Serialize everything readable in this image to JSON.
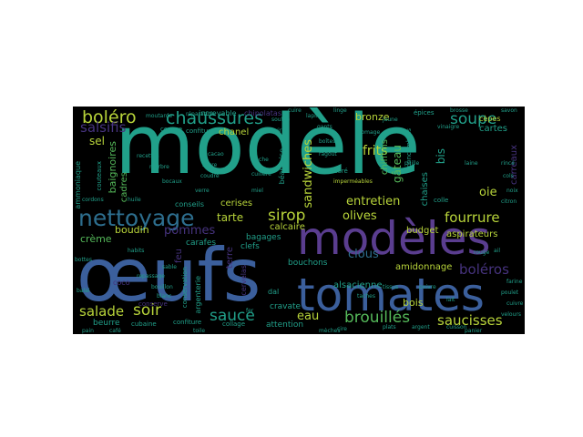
{
  "palette": {
    "teal": "#21a08a",
    "blue": "#3b5f9c",
    "purple": "#5a3d8f",
    "green": "#55b95a",
    "yellow": "#b8d43a",
    "darkblue": "#2d6e8e",
    "indigo": "#46337e",
    "background": "#000000"
  },
  "words": {
    "modele": "modèle",
    "oeufs": "œufs",
    "tomates": "tomates",
    "modeles": "modèles",
    "nettoyage": "nettoyage",
    "chaussures": "chaussures",
    "bolero": "boléro",
    "soupe": "soupe",
    "salsifis": "salsifis",
    "sirop": "sirop",
    "sauce": "sauce",
    "salade": "salade",
    "soir": "soir",
    "brouilles": "brouillés",
    "saucisses": "saucisses",
    "fourrure": "fourrure",
    "boleros": "boléros",
    "olives": "olives",
    "entretien": "entretien",
    "clous": "clous",
    "frits": "frits",
    "sandwiches": "sandwiches",
    "tarte": "tarte",
    "pommes": "pommes",
    "creme": "crème",
    "boudin": "boudin",
    "sel": "sel",
    "baignoires": "baignoires",
    "cadres": "cadres",
    "oie": "oie",
    "bis": "bis",
    "gateau": "gâteau",
    "chiffons": "chiffons",
    "bronze": "bronze",
    "eau": "eau",
    "bois": "bois",
    "budget": "budget",
    "amidonnage": "amidonnage",
    "alsacienne": "alsacienne",
    "chaises": "chaises",
    "aspirateurs": "aspirateurs",
    "cartes": "cartes",
    "chanel": "chanel",
    "beurre": "beurre",
    "cerises": "cerises",
    "calcaire": "calcaire",
    "bagages": "bagages",
    "carafes": "carafes",
    "clefs": "clefs",
    "bouchons": "bouchons",
    "feu": "feu",
    "terre": "terre",
    "attention": "attention",
    "cravate": "cravate",
    "dal": "dal",
    "carreaux": "carreaux",
    "conserve": "conserve",
    "argenterie": "argenterie",
    "conservation": "conservation",
    "coco": "coco",
    "cubaine": "cubaine",
    "confitures": "confitures",
    "chipolatas": "chipolatas",
    "increvable": "increvable",
    "couleurs": "couleurs",
    "collage": "collage",
    "conseils": "conseils",
    "ammoniaque": "ammoniaque",
    "cepes": "cèpes",
    "courge": "courge",
    "concombres": "concombres",
    "dore": "doré",
    "colle": "colle",
    "buvard": "buvard",
    "bearnaise": "béarnaise",
    "confiture": "confiture",
    "cervelas": "cervelas",
    "couteaux": "couteaux",
    "epices": "épices",
    "lapin": "lapin",
    "gants": "gants",
    "cuir": "cuir",
    "tache": "tache",
    "souffle": "soufflé",
    "vinaigre": "vinaigre",
    "jaune": "jaune",
    "noix": "noix",
    "citron": "citron",
    "imperméables": "imperméables",
    "farine": "farine",
    "poulet": "poulet",
    "cuivre": "cuivre",
    "velours": "velours",
    "cuisson": "cuisson",
    "argent": "argent",
    "plats": "plats",
    "cire": "cire",
    "reparation": "réparation",
    "moutarde": "moutarde",
    "recettes": "recettes",
    "marbre": "marbre",
    "bocaux": "bocaux",
    "cacao": "cacao",
    "sucre": "sucre",
    "coudre": "coudre",
    "verre": "verre",
    "miel": "miel",
    "cuillere": "cuillère",
    "boites": "boîtes",
    "ragout": "ragoût",
    "fromage": "fromage",
    "paille": "paille",
    "laine": "laine",
    "rince": "rincé",
    "cols": "cols",
    "ail": "ail",
    "rouge": "rouge",
    "lait": "lait",
    "poivre": "poivre",
    "tissus": "tissus",
    "habits": "habits",
    "repassage": "repassage",
    "bouillon": "bouillon",
    "sable": "sable",
    "blanc": "blanc",
    "pain": "pain",
    "cafe": "café",
    "toile": "toile",
    "meches": "mèches",
    "taches": "taches",
    "brosse": "brosse",
    "savon": "savon",
    "linge": "linge",
    "cuire": "cuire",
    "huile": "huile",
    "cordons": "cordons",
    "bottes": "bottes",
    "balai": "balai",
    "panier": "panier",
    "fer": "fer"
  }
}
